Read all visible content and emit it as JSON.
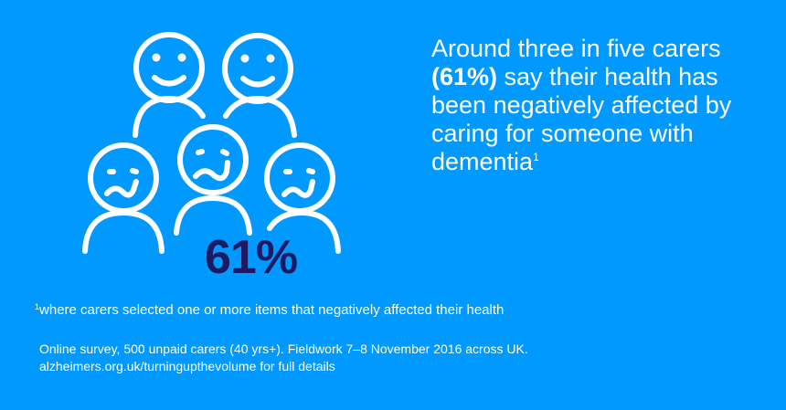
{
  "colors": {
    "background": "#0099ff",
    "stat": "#1b1a63",
    "text": "#ffffff"
  },
  "figure": {
    "icons": [
      "happy-person-icon",
      "happy-person-icon",
      "sad-person-icon",
      "sad-person-icon",
      "sad-person-icon"
    ],
    "stat": "61%"
  },
  "headline": {
    "part1": "Around three in five carers ",
    "bold": "(61%)",
    "part2": " say their health has been negatively affected by caring for someone with dementia",
    "sup": "1"
  },
  "footnote": {
    "sup": "1",
    "text": "where carers selected one or more items that negatively affected their health"
  },
  "source": {
    "line1": "Online survey, 500 unpaid carers (40 yrs+). Fieldwork 7–8 November 2016 across UK.",
    "line2": "alzheimers.org.uk/turningupthevolume for full details"
  }
}
